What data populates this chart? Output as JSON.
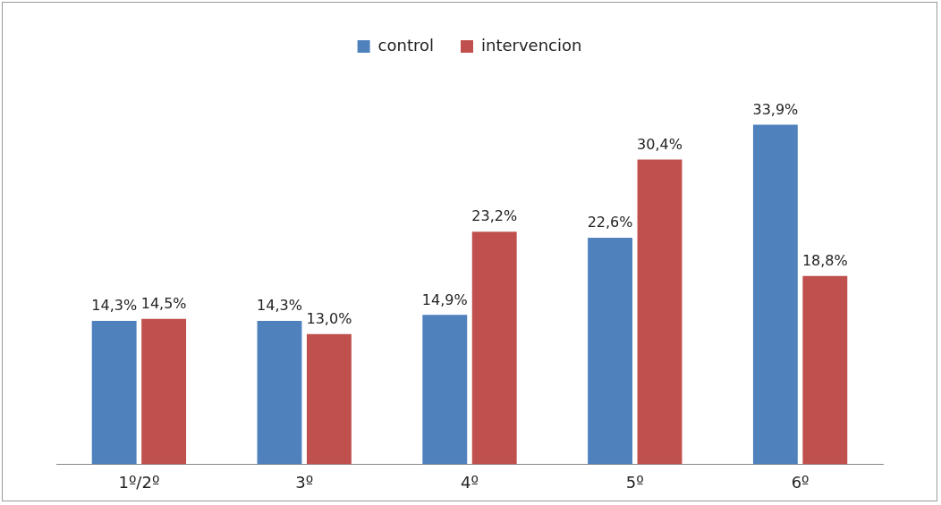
{
  "chart_data": {
    "type": "bar",
    "categories": [
      "1º/2º",
      "3º",
      "4º",
      "5º",
      "6º"
    ],
    "series": [
      {
        "name": "control",
        "color": "#4f81bd",
        "values": [
          14.3,
          14.3,
          14.9,
          22.6,
          33.9
        ],
        "value_labels": [
          "14,3%",
          "14,3%",
          "14,9%",
          "22,6%",
          "33,9%"
        ]
      },
      {
        "name": "intervencion",
        "color": "#c0504d",
        "values": [
          14.5,
          13.0,
          23.2,
          30.4,
          18.8
        ],
        "value_labels": [
          "14,5%",
          "13,0%",
          "23,2%",
          "30,4%",
          "18,8%"
        ]
      }
    ],
    "legend": "top",
    "grid": false
  }
}
